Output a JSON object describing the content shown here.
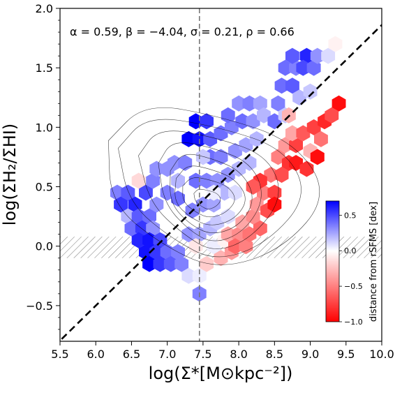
{
  "chart_data": {
    "type": "hexbin",
    "xlabel": "log(Σ*[M⊙kpc⁻²])",
    "ylabel": "log(ΣH₂/ΣHI)",
    "xlim": [
      5.5,
      10.0
    ],
    "ylim": [
      -0.8,
      2.0
    ],
    "xticks": [
      "5.5",
      "6.0",
      "6.5",
      "7.0",
      "7.5",
      "8.0",
      "8.5",
      "9.0",
      "9.5",
      "10.0"
    ],
    "yticks": [
      "−0.5",
      "0.0",
      "0.5",
      "1.0",
      "1.5",
      "2.0"
    ],
    "annotation": "α = 0.59, β = −4.04, σ = 0.21, ρ = 0.66",
    "fit_line": {
      "slope": 0.59,
      "intercept": -4.04,
      "style": "dashed"
    },
    "vertical_line": {
      "x": 7.45,
      "style": "dashed",
      "color": "#777777"
    },
    "hatched_band": {
      "ymin": -0.1,
      "ymax": 0.08
    },
    "colorbar": {
      "label": "distance from rSFMS [dex]",
      "range": [
        -1.0,
        0.7
      ],
      "ticks": [
        "0.5",
        "0.0",
        "−0.5",
        "−1.0"
      ],
      "tick_values": [
        0.5,
        0.0,
        -0.5,
        -1.0
      ],
      "cmap": "bwr"
    },
    "hexbins": [
      {
        "x": 7.4,
        "y": 1.05,
        "v": 0.7
      },
      {
        "x": 7.55,
        "y": 1.05,
        "v": 0.55
      },
      {
        "x": 7.3,
        "y": 0.9,
        "v": 0.7
      },
      {
        "x": 7.45,
        "y": 0.9,
        "v": 0.65
      },
      {
        "x": 7.6,
        "y": 0.9,
        "v": 0.45
      },
      {
        "x": 7.75,
        "y": 0.95,
        "v": 0.4
      },
      {
        "x": 7.9,
        "y": 1.0,
        "v": 0.35
      },
      {
        "x": 7.85,
        "y": 1.1,
        "v": 0.4
      },
      {
        "x": 8.05,
        "y": 1.05,
        "v": 0.4
      },
      {
        "x": 8.2,
        "y": 1.05,
        "v": 0.3
      },
      {
        "x": 8.0,
        "y": 1.2,
        "v": 0.3
      },
      {
        "x": 8.15,
        "y": 1.2,
        "v": 0.35
      },
      {
        "x": 8.3,
        "y": 1.2,
        "v": 0.25
      },
      {
        "x": 8.35,
        "y": 1.1,
        "v": 0.2
      },
      {
        "x": 8.5,
        "y": 1.05,
        "v": 0.4
      },
      {
        "x": 8.55,
        "y": 1.2,
        "v": 0.35
      },
      {
        "x": 8.65,
        "y": 1.1,
        "v": 0.15
      },
      {
        "x": 8.6,
        "y": 1.35,
        "v": 0.4
      },
      {
        "x": 8.75,
        "y": 1.35,
        "v": 0.45
      },
      {
        "x": 8.65,
        "y": 1.5,
        "v": 0.4
      },
      {
        "x": 8.8,
        "y": 1.5,
        "v": 0.35
      },
      {
        "x": 8.75,
        "y": 1.6,
        "v": 0.45
      },
      {
        "x": 8.95,
        "y": 1.6,
        "v": 0.6
      },
      {
        "x": 8.9,
        "y": 1.5,
        "v": 0.5
      },
      {
        "x": 9.05,
        "y": 1.5,
        "v": 0.4
      },
      {
        "x": 9.1,
        "y": 1.6,
        "v": 0.3
      },
      {
        "x": 9.25,
        "y": 1.6,
        "v": 0.1
      },
      {
        "x": 9.35,
        "y": 1.7,
        "v": -0.05
      },
      {
        "x": 8.85,
        "y": 1.25,
        "v": 0.2
      },
      {
        "x": 9.0,
        "y": 1.3,
        "v": 0.15
      },
      {
        "x": 6.3,
        "y": 0.45,
        "v": 0.35
      },
      {
        "x": 6.45,
        "y": 0.45,
        "v": 0.45
      },
      {
        "x": 6.35,
        "y": 0.35,
        "v": 0.55
      },
      {
        "x": 6.55,
        "y": 0.35,
        "v": 0.6
      },
      {
        "x": 6.7,
        "y": 0.45,
        "v": 0.5
      },
      {
        "x": 6.8,
        "y": 0.55,
        "v": 0.35
      },
      {
        "x": 6.85,
        "y": 0.65,
        "v": 0.3
      },
      {
        "x": 7.0,
        "y": 0.65,
        "v": 0.3
      },
      {
        "x": 6.6,
        "y": 0.55,
        "v": -0.15
      },
      {
        "x": 7.15,
        "y": 0.55,
        "v": 0.2
      },
      {
        "x": 7.1,
        "y": 0.7,
        "v": 0.3
      },
      {
        "x": 7.25,
        "y": 0.7,
        "v": 0.35
      },
      {
        "x": 7.0,
        "y": 0.45,
        "v": 0.35
      },
      {
        "x": 7.15,
        "y": 0.4,
        "v": 0.4
      },
      {
        "x": 6.85,
        "y": 0.35,
        "v": 0.3
      },
      {
        "x": 6.45,
        "y": 0.25,
        "v": 0.2
      },
      {
        "x": 6.6,
        "y": 0.25,
        "v": 0.45
      },
      {
        "x": 6.75,
        "y": 0.25,
        "v": 0.4
      },
      {
        "x": 6.5,
        "y": 0.15,
        "v": 0.4
      },
      {
        "x": 6.65,
        "y": 0.15,
        "v": 0.55
      },
      {
        "x": 6.8,
        "y": 0.15,
        "v": 0.3
      },
      {
        "x": 6.6,
        "y": 0.05,
        "v": 0.6
      },
      {
        "x": 6.75,
        "y": 0.05,
        "v": 0.65
      },
      {
        "x": 6.9,
        "y": 0.05,
        "v": 0.5
      },
      {
        "x": 6.7,
        "y": -0.05,
        "v": 0.65
      },
      {
        "x": 6.85,
        "y": -0.05,
        "v": 0.55
      },
      {
        "x": 7.0,
        "y": -0.05,
        "v": 0.4
      },
      {
        "x": 6.75,
        "y": -0.15,
        "v": 0.7
      },
      {
        "x": 6.9,
        "y": -0.15,
        "v": 0.55
      },
      {
        "x": 7.05,
        "y": -0.15,
        "v": 0.45
      },
      {
        "x": 7.2,
        "y": -0.15,
        "v": 0.35
      },
      {
        "x": 7.15,
        "y": -0.05,
        "v": 0.35
      },
      {
        "x": 7.3,
        "y": -0.25,
        "v": 0.1
      },
      {
        "x": 7.45,
        "y": -0.25,
        "v": 0.05
      },
      {
        "x": 7.45,
        "y": -0.4,
        "v": 0.35
      },
      {
        "x": 7.3,
        "y": 0.1,
        "v": 0.3
      },
      {
        "x": 7.45,
        "y": 0.1,
        "v": 0.25
      },
      {
        "x": 7.6,
        "y": 0.15,
        "v": 0.2
      },
      {
        "x": 7.35,
        "y": 0.3,
        "v": 0.35
      },
      {
        "x": 7.5,
        "y": 0.35,
        "v": 0.3
      },
      {
        "x": 7.65,
        "y": 0.35,
        "v": 0.25
      },
      {
        "x": 7.4,
        "y": 0.55,
        "v": 0.4
      },
      {
        "x": 7.55,
        "y": 0.55,
        "v": 0.35
      },
      {
        "x": 7.7,
        "y": 0.55,
        "v": 0.3
      },
      {
        "x": 7.6,
        "y": 0.75,
        "v": 0.4
      },
      {
        "x": 7.75,
        "y": 0.75,
        "v": 0.35
      },
      {
        "x": 7.85,
        "y": 0.6,
        "v": 0.3
      },
      {
        "x": 7.95,
        "y": 0.8,
        "v": 0.3
      },
      {
        "x": 8.1,
        "y": 0.85,
        "v": 0.25
      },
      {
        "x": 8.0,
        "y": 0.65,
        "v": 0.2
      },
      {
        "x": 8.15,
        "y": 0.7,
        "v": 0.2
      },
      {
        "x": 8.25,
        "y": 0.9,
        "v": 0.2
      },
      {
        "x": 7.8,
        "y": 0.45,
        "v": 0.2
      },
      {
        "x": 7.95,
        "y": 0.45,
        "v": 0.1
      },
      {
        "x": 7.7,
        "y": 0.2,
        "v": 0.15
      },
      {
        "x": 7.85,
        "y": 0.25,
        "v": 0.1
      },
      {
        "x": 7.65,
        "y": 0.0,
        "v": 0.05
      },
      {
        "x": 7.8,
        "y": 0.05,
        "v": -0.05
      },
      {
        "x": 7.75,
        "y": -0.1,
        "v": -0.3
      },
      {
        "x": 7.9,
        "y": -0.05,
        "v": -0.4
      },
      {
        "x": 7.85,
        "y": 0.1,
        "v": -0.35
      },
      {
        "x": 8.0,
        "y": 0.1,
        "v": -0.45
      },
      {
        "x": 7.95,
        "y": 0.0,
        "v": -0.6
      },
      {
        "x": 8.1,
        "y": 0.0,
        "v": -0.5
      },
      {
        "x": 8.05,
        "y": 0.2,
        "v": -0.35
      },
      {
        "x": 8.2,
        "y": 0.25,
        "v": -0.45
      },
      {
        "x": 8.15,
        "y": 0.1,
        "v": -0.55
      },
      {
        "x": 8.3,
        "y": 0.15,
        "v": -0.6
      },
      {
        "x": 8.25,
        "y": 0.35,
        "v": -0.4
      },
      {
        "x": 8.4,
        "y": 0.3,
        "v": -0.7
      },
      {
        "x": 8.35,
        "y": 0.45,
        "v": -0.5
      },
      {
        "x": 8.5,
        "y": 0.45,
        "v": -0.75
      },
      {
        "x": 8.45,
        "y": 0.6,
        "v": -0.55
      },
      {
        "x": 8.6,
        "y": 0.6,
        "v": -0.7
      },
      {
        "x": 8.55,
        "y": 0.75,
        "v": -0.5
      },
      {
        "x": 8.7,
        "y": 0.7,
        "v": -0.8
      },
      {
        "x": 8.65,
        "y": 0.85,
        "v": -0.4
      },
      {
        "x": 8.8,
        "y": 0.85,
        "v": -0.75
      },
      {
        "x": 8.75,
        "y": 0.95,
        "v": -0.35
      },
      {
        "x": 8.9,
        "y": 0.95,
        "v": -0.65
      },
      {
        "x": 9.0,
        "y": 0.8,
        "v": -0.3
      },
      {
        "x": 9.05,
        "y": 1.0,
        "v": -0.75
      },
      {
        "x": 9.15,
        "y": 0.9,
        "v": -0.55
      },
      {
        "x": 9.2,
        "y": 1.05,
        "v": -0.85
      },
      {
        "x": 9.3,
        "y": 1.1,
        "v": -0.7
      },
      {
        "x": 9.4,
        "y": 1.2,
        "v": -0.95
      },
      {
        "x": 8.5,
        "y": 0.35,
        "v": -0.95
      },
      {
        "x": 8.3,
        "y": 0.55,
        "v": -0.8
      },
      {
        "x": 8.2,
        "y": 0.5,
        "v": -0.65
      },
      {
        "x": 8.8,
        "y": 0.7,
        "v": -0.9
      },
      {
        "x": 8.95,
        "y": 0.65,
        "v": -0.8
      },
      {
        "x": 9.1,
        "y": 0.75,
        "v": -0.95
      },
      {
        "x": 8.7,
        "y": 1.1,
        "v": -0.3
      },
      {
        "x": 7.55,
        "y": -0.15,
        "v": -0.2
      },
      {
        "x": 7.4,
        "y": 0.0,
        "v": -0.1
      },
      {
        "x": 7.65,
        "y": 0.45,
        "v": 0.05
      },
      {
        "x": 7.5,
        "y": 0.75,
        "v": 0.15
      }
    ]
  }
}
